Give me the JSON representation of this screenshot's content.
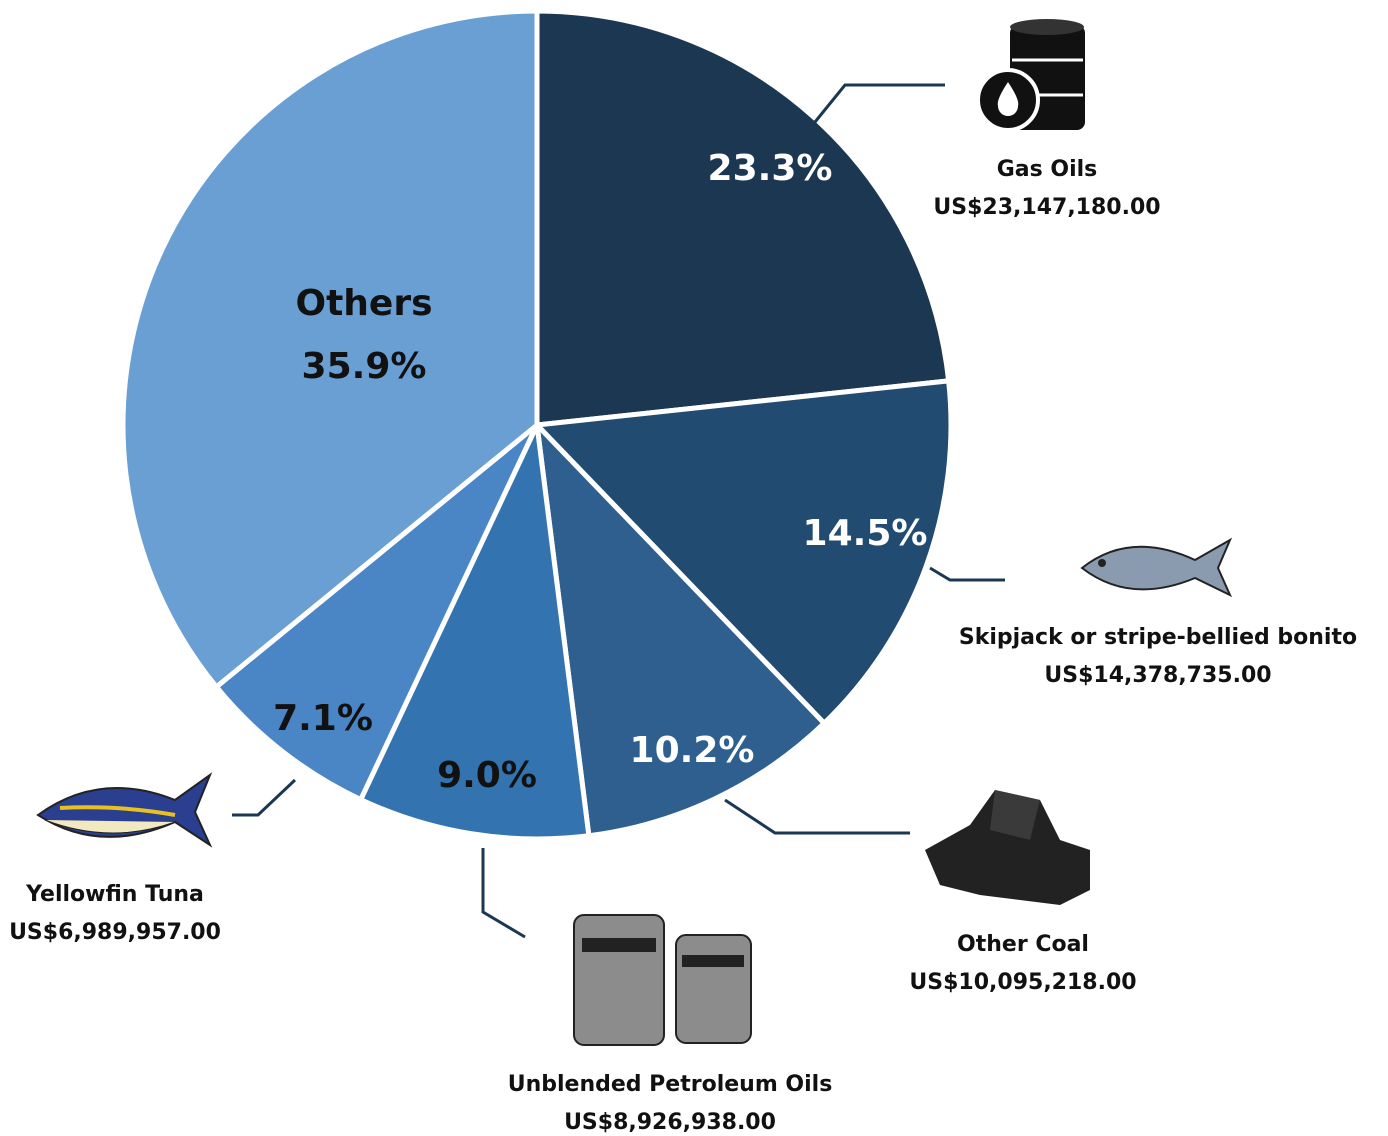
{
  "chart_data": {
    "type": "pie",
    "categories": [
      "Gas Oils",
      "Skipjack or stripe-bellied bonito",
      "Other Coal",
      "Unblended Petroleum Oils",
      "Yellowfin Tuna",
      "Others"
    ],
    "values": [
      23.3,
      14.5,
      10.2,
      9.0,
      7.1,
      35.9
    ],
    "value_labels": [
      "23.3%",
      "14.5%",
      "10.2%",
      "9.0%",
      "7.1%",
      "35.9%"
    ],
    "amount_labels": [
      "US$23,147,180.00",
      "US$14,378,735.00",
      "US$10,095,218.00",
      "US$8,926,938.00",
      "US$6,989,957.00",
      null
    ],
    "colors": [
      "#1c3752",
      "#214b70",
      "#2e5f8e",
      "#3374b0",
      "#4a86c5",
      "#6a9fd4"
    ],
    "label_colors": [
      "#ffffff",
      "#ffffff",
      "#ffffff",
      "#111111",
      "#111111",
      "#111111"
    ]
  }
}
